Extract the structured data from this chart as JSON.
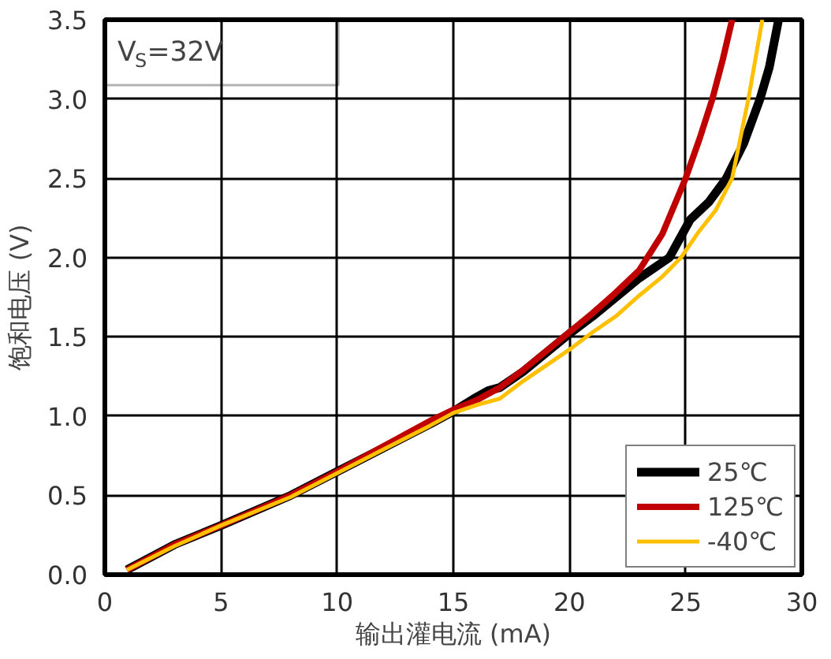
{
  "chart_data": {
    "type": "line",
    "xlabel": "输出灌电流 (mA)",
    "ylabel": "饱和电压 (V)",
    "annotations": [
      "V$_{S}$=32V"
    ],
    "xlim": [
      0,
      30
    ],
    "ylim": [
      0,
      3.5
    ],
    "xticks": [
      0,
      5,
      10,
      15,
      20,
      25,
      30
    ],
    "yticks": [
      {
        "value": 0,
        "label": "0.0"
      },
      {
        "value": 0.5,
        "label": "0.5"
      },
      {
        "value": 1,
        "label": "1.0"
      },
      {
        "value": 1.5,
        "label": "1.5"
      },
      {
        "value": 2,
        "label": "2.0"
      },
      {
        "value": 2.5,
        "label": "2.5"
      },
      {
        "value": 3,
        "label": "3.0"
      },
      {
        "value": 3.5,
        "label": "3.5"
      }
    ],
    "grid": true,
    "legend": "bottom right",
    "line_style": "solid",
    "marker": "none",
    "series": [
      {
        "name": "25℃",
        "color": "#000000",
        "x": [
          0.95,
          3,
          5,
          8,
          10,
          12,
          14,
          15,
          16,
          16.5,
          17,
          18,
          20,
          21,
          22,
          23,
          24,
          24.3,
          25.2,
          26,
          26.75,
          27.5,
          28.2,
          28.6,
          29.0
        ],
        "values": [
          0.03,
          0.19,
          0.31,
          0.5,
          0.65,
          0.8,
          0.95,
          1.03,
          1.12,
          1.16,
          1.18,
          1.28,
          1.52,
          1.63,
          1.75,
          1.87,
          1.97,
          2.0,
          2.24,
          2.35,
          2.5,
          2.72,
          3.0,
          3.2,
          3.5
        ]
      },
      {
        "name": "125℃",
        "color": "#c00000",
        "x": [
          0.95,
          3,
          5,
          8,
          10,
          12,
          14,
          15,
          16,
          17,
          18,
          20,
          21,
          22,
          23,
          24,
          25,
          25.6,
          26.15,
          26.6,
          27.0
        ],
        "values": [
          0.03,
          0.19,
          0.31,
          0.5,
          0.65,
          0.81,
          0.97,
          1.04,
          1.1,
          1.18,
          1.29,
          1.53,
          1.65,
          1.78,
          1.92,
          2.15,
          2.5,
          2.75,
          3.0,
          3.25,
          3.5
        ]
      },
      {
        "name": "-40℃",
        "color": "#ffc000",
        "x": [
          0.95,
          3,
          5,
          8,
          10,
          12,
          14,
          15,
          16,
          17,
          18,
          20,
          21,
          22,
          23,
          24,
          24.8,
          25.5,
          26.3,
          27.0,
          27.7,
          28.0,
          28.3
        ],
        "values": [
          0.03,
          0.18,
          0.31,
          0.49,
          0.64,
          0.79,
          0.94,
          1.02,
          1.07,
          1.11,
          1.22,
          1.42,
          1.53,
          1.63,
          1.76,
          1.88,
          2.0,
          2.15,
          2.3,
          2.5,
          3.0,
          3.25,
          3.5
        ]
      }
    ]
  }
}
